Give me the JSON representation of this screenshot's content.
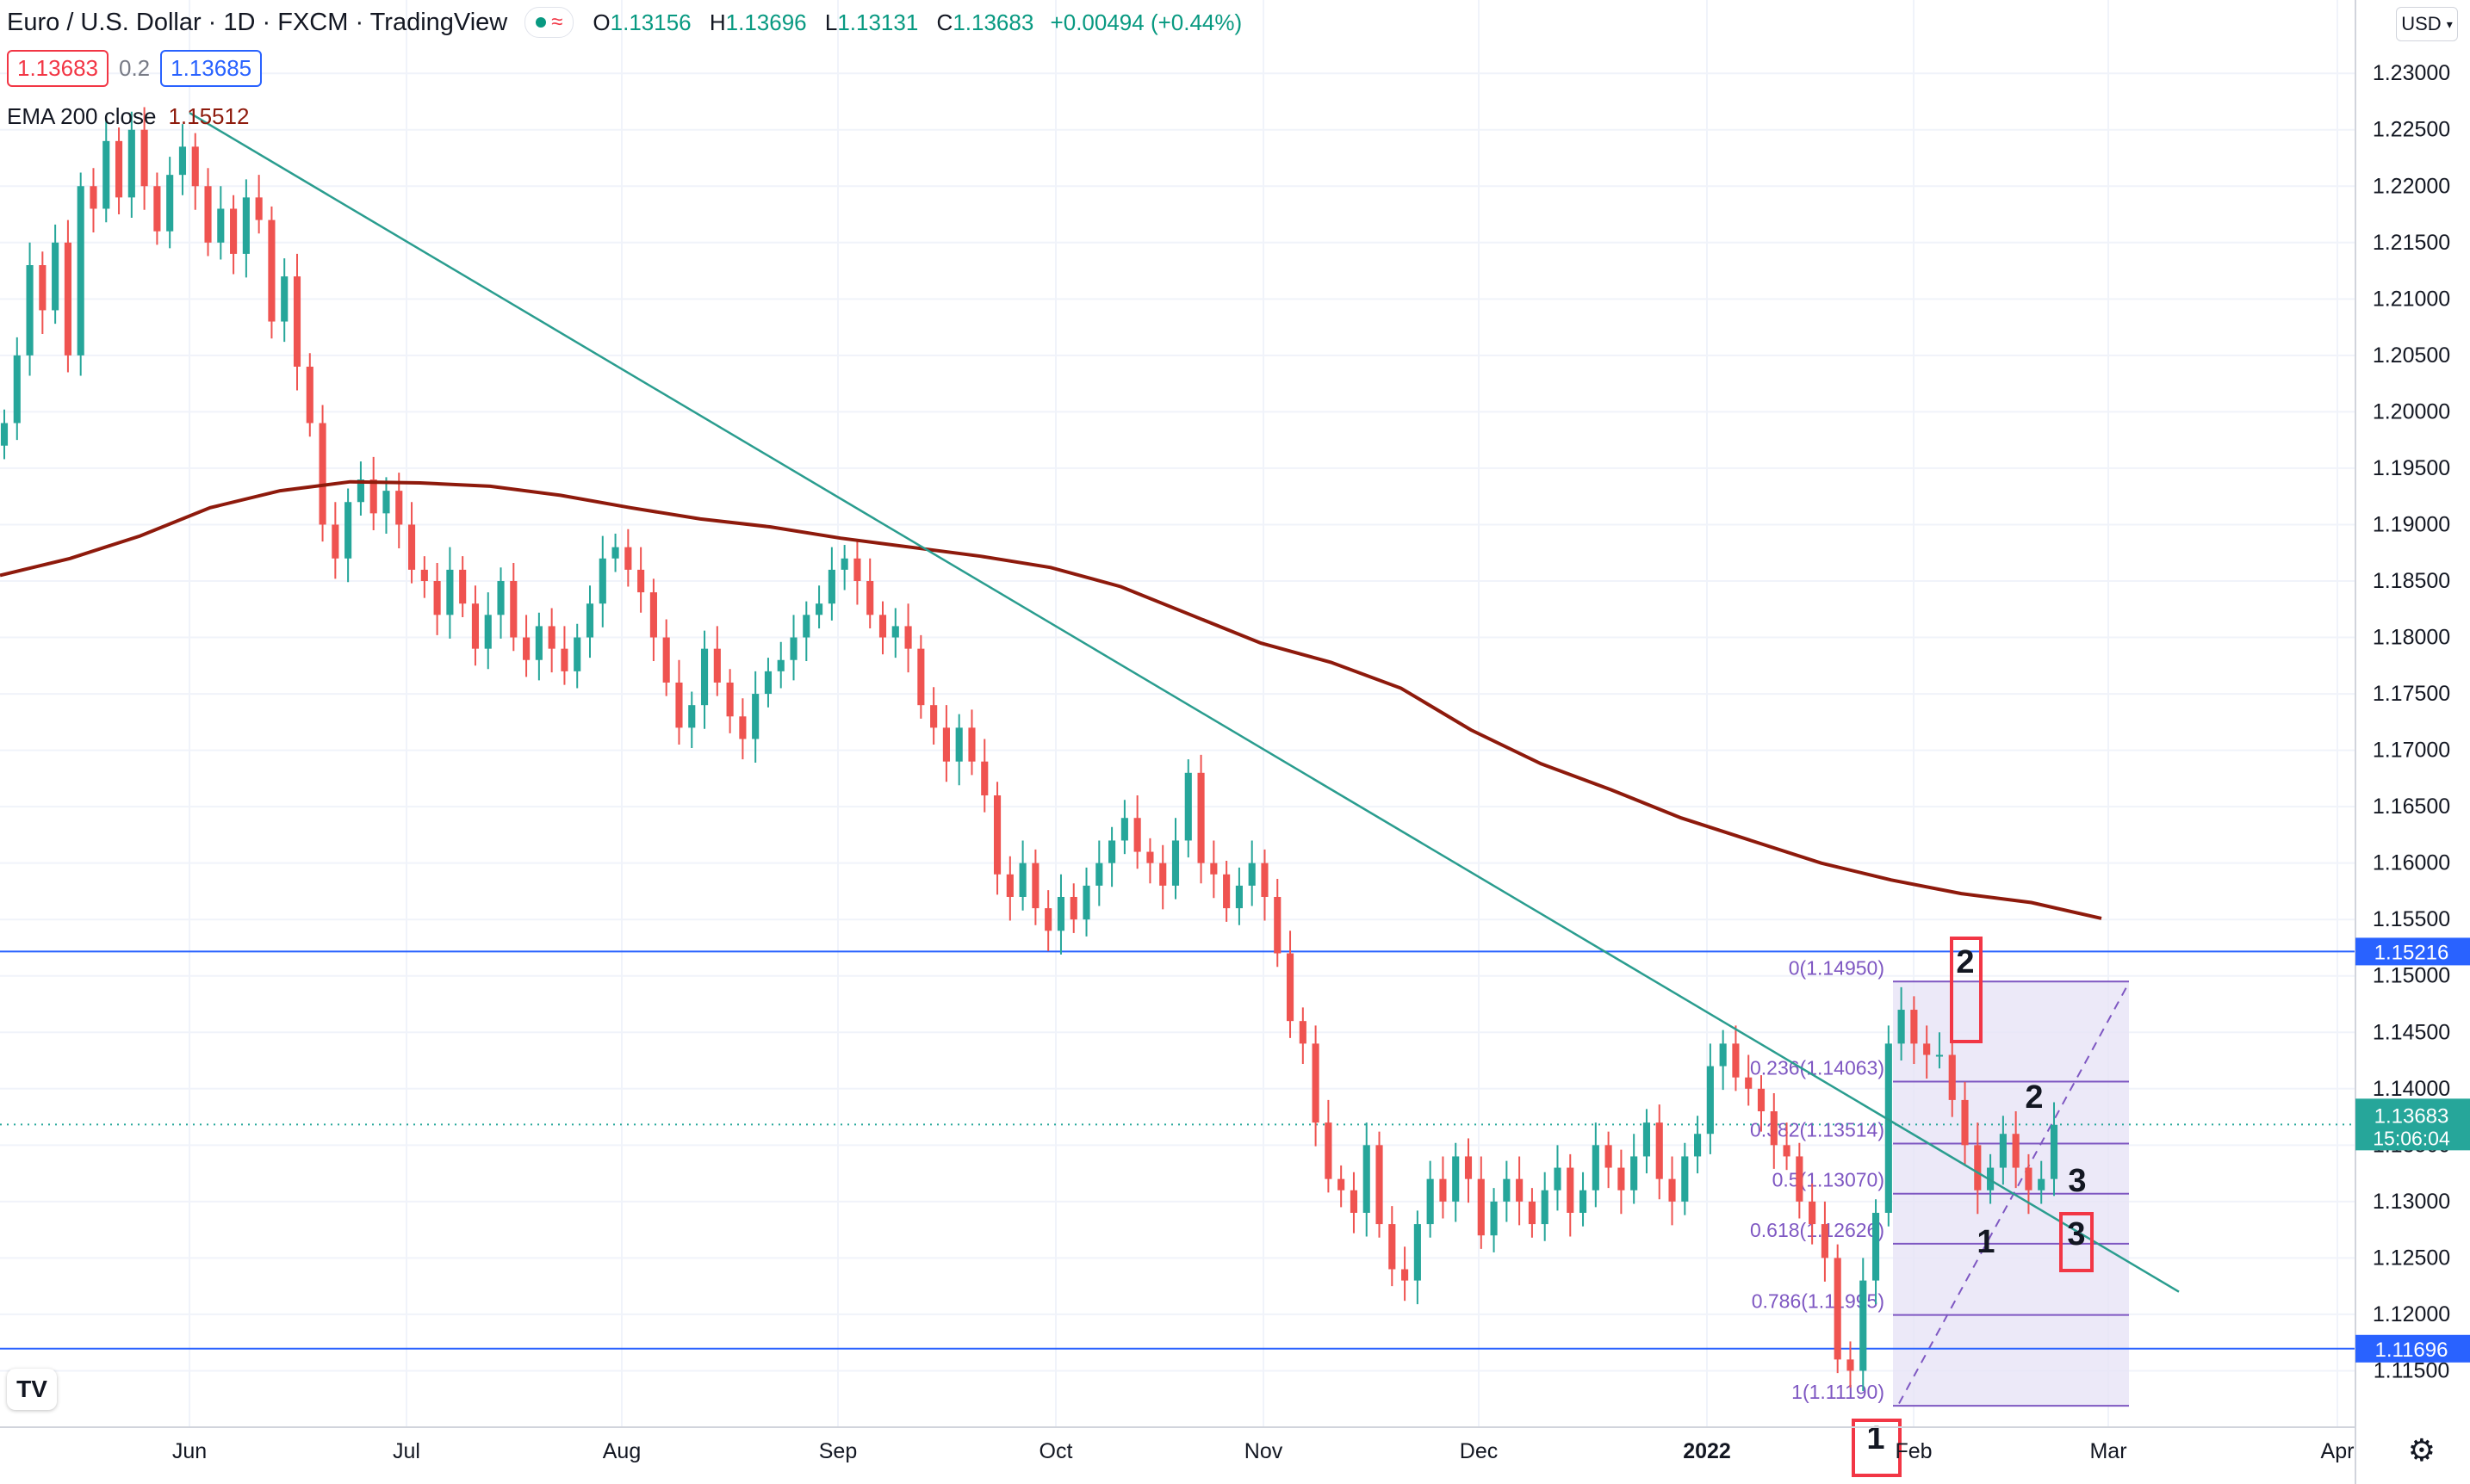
{
  "header": {
    "symbol": "Euro / U.S. Dollar · 1D · FXCM · TradingView",
    "ohlc": {
      "o_label": "O",
      "o": "1.13156",
      "h_label": "H",
      "h": "1.13696",
      "l_label": "L",
      "l": "1.13131",
      "c_label": "C",
      "c": "1.13683",
      "change": "+0.00494 (+0.44%)"
    },
    "sell_price": "1.13683",
    "spread": "0.2",
    "buy_price": "1.13685",
    "ema_label": "EMA 200 close",
    "ema_value": "1.15512",
    "currency": "USD"
  },
  "icons": {
    "indicator_dot": "green-dot-icon",
    "wave": "wave-icon",
    "logo": "tradingview-logo-icon",
    "settings": "gear-icon"
  },
  "colors": {
    "up": "#26a69a",
    "down": "#ef5350",
    "ema": "#8e1a0c",
    "trendline": "#2a9d8f",
    "hline": "#2962ff",
    "fib_fill": "#e7e3f6",
    "fib_text": "#7e57c2",
    "last_price": "#26a69a"
  },
  "chart_data": {
    "type": "candlestick",
    "title": "Euro / U.S. Dollar · 1D · FXCM",
    "ylim": [
      1.11,
      1.2365
    ],
    "y_ticks": [
      "1.15000",
      "1.15500",
      "1.16000",
      "1.16500",
      "1.17000",
      "1.17500",
      "1.18000",
      "1.18500",
      "1.19000",
      "1.19500",
      "1.20000",
      "1.20500",
      "1.21000",
      "1.21500",
      "1.22000",
      "1.22500",
      "1.23000",
      "1.11500",
      "1.12000",
      "1.12500",
      "1.13000",
      "1.13500",
      "1.14000",
      "1.14500"
    ],
    "x_ticks": [
      "Jun",
      "Jul",
      "Aug",
      "Sep",
      "Oct",
      "Nov",
      "Dec",
      "2022",
      "Feb",
      "Mar",
      "Apr"
    ],
    "price_path": [
      1.199,
      1.205,
      1.213,
      1.209,
      1.215,
      1.205,
      1.22,
      1.218,
      1.224,
      1.219,
      1.225,
      1.22,
      1.216,
      1.221,
      1.2235,
      1.22,
      1.215,
      1.218,
      1.214,
      1.219,
      1.217,
      1.208,
      1.212,
      1.204,
      1.199,
      1.19,
      1.187,
      1.192,
      1.194,
      1.191,
      1.193,
      1.19,
      1.186,
      1.185,
      1.182,
      1.186,
      1.183,
      1.179,
      1.182,
      1.185,
      1.18,
      1.178,
      1.181,
      1.179,
      1.177,
      1.18,
      1.183,
      1.187,
      1.188,
      1.186,
      1.184,
      1.18,
      1.176,
      1.172,
      1.174,
      1.179,
      1.176,
      1.173,
      1.171,
      1.175,
      1.177,
      1.178,
      1.18,
      1.182,
      1.183,
      1.186,
      1.187,
      1.185,
      1.182,
      1.18,
      1.181,
      1.179,
      1.174,
      1.172,
      1.169,
      1.172,
      1.169,
      1.166,
      1.159,
      1.157,
      1.16,
      1.156,
      1.154,
      1.157,
      1.155,
      1.158,
      1.16,
      1.162,
      1.164,
      1.161,
      1.16,
      1.158,
      1.162,
      1.168,
      1.16,
      1.159,
      1.156,
      1.158,
      1.16,
      1.157,
      1.152,
      1.146,
      1.144,
      1.137,
      1.132,
      1.131,
      1.129,
      1.135,
      1.128,
      1.124,
      1.123,
      1.128,
      1.132,
      1.13,
      1.134,
      1.132,
      1.127,
      1.13,
      1.132,
      1.13,
      1.128,
      1.131,
      1.133,
      1.129,
      1.131,
      1.135,
      1.133,
      1.131,
      1.134,
      1.137,
      1.132,
      1.13,
      1.134,
      1.136,
      1.142,
      1.144,
      1.141,
      1.14,
      1.138,
      1.135,
      1.134,
      1.13,
      1.128,
      1.125,
      1.116,
      1.115,
      1.123,
      1.129,
      1.144,
      1.147,
      1.144,
      1.143,
      1.143,
      1.139,
      1.135,
      1.131,
      1.133,
      1.136,
      1.133,
      1.131,
      1.132,
      1.1368
    ],
    "ema_200": [
      1.1855,
      1.187,
      1.189,
      1.1915,
      1.193,
      1.1938,
      1.1937,
      1.1934,
      1.1926,
      1.1915,
      1.1905,
      1.1898,
      1.1888,
      1.188,
      1.1872,
      1.1862,
      1.1845,
      1.182,
      1.1795,
      1.1778,
      1.1755,
      1.1718,
      1.1688,
      1.1665,
      1.164,
      1.162,
      1.16,
      1.1585,
      1.1573,
      1.1565,
      1.1551
    ],
    "ema_dates": [
      "May 2021",
      "early Jun",
      "mid Jun",
      "late Jun",
      "Jul",
      "mid Jul",
      "late Jul",
      "Aug",
      "mid Aug",
      "late Aug",
      "Sep",
      "mid Sep",
      "late Sep",
      "Oct",
      "mid Oct",
      "late Oct",
      "Nov",
      "mid Nov",
      "late Nov",
      "Dec",
      "mid Dec",
      "late Dec",
      "Jan 2022",
      "mid Jan",
      "late Jan",
      "Feb",
      "early Feb",
      "mid Feb",
      "late Feb",
      "Feb end",
      "latest"
    ],
    "last_price": "1.13683",
    "countdown": "15:06:04",
    "horizontal_lines": [
      {
        "price": 1.15216,
        "label": "1.15216"
      },
      {
        "price": 1.11696,
        "label": "1.11696"
      }
    ],
    "trendline": {
      "from": {
        "date": "late May 2021",
        "price": 1.2265
      },
      "to": {
        "date": "early Mar 2022",
        "price": 1.122
      }
    },
    "fib_retracement": {
      "high": 1.1495,
      "low": 1.1119,
      "levels": [
        {
          "ratio": "0",
          "price": 1.1495,
          "label": "0(1.14950)"
        },
        {
          "ratio": "0.236",
          "price": 1.14063,
          "label": "0.236(1.14063)"
        },
        {
          "ratio": "0.382",
          "price": 1.13514,
          "label": "0.382(1.13514)"
        },
        {
          "ratio": "0.5",
          "price": 1.1307,
          "label": "0.5(1.13070)"
        },
        {
          "ratio": "0.618",
          "price": 1.12626,
          "label": "0.618(1.12626)"
        },
        {
          "ratio": "0.786",
          "price": 1.11995,
          "label": "0.786(1.11995)"
        },
        {
          "ratio": "1",
          "price": 1.1119,
          "label": "1(1.11190)"
        }
      ]
    },
    "annotations": [
      {
        "text": "1",
        "boxed": true
      },
      {
        "text": "2",
        "boxed": true
      },
      {
        "text": "3",
        "boxed": true
      },
      {
        "text": "1",
        "boxed": false
      },
      {
        "text": "2",
        "boxed": false
      },
      {
        "text": "3",
        "boxed": false
      }
    ]
  }
}
